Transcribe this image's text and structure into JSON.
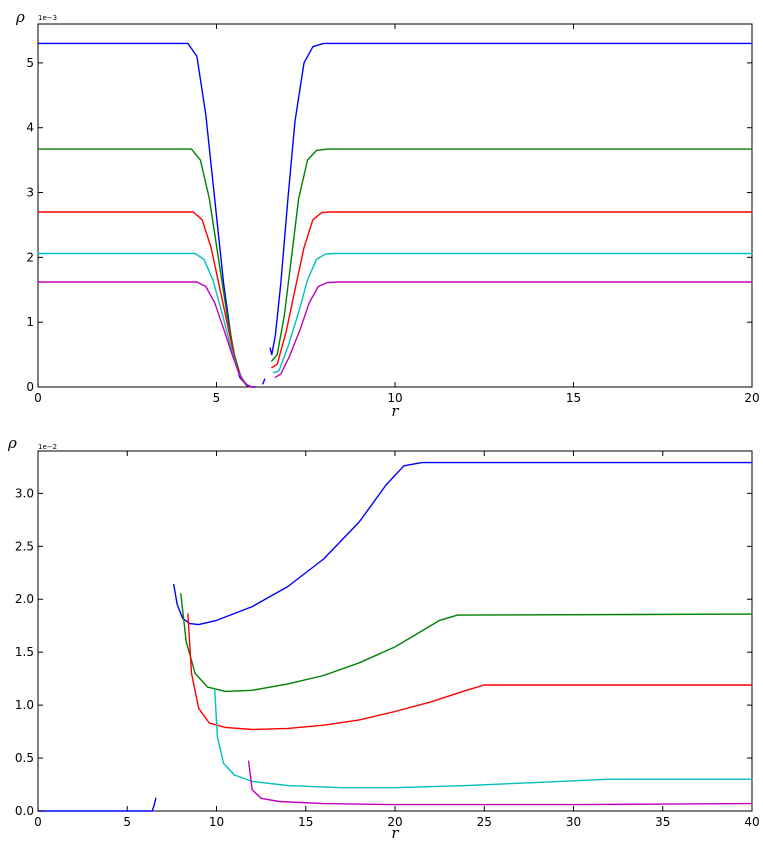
{
  "chart_data": [
    {
      "type": "line",
      "xlabel": "r",
      "ylabel": "ρ",
      "y_offset_label": "1e−3",
      "xlim": [
        0,
        20
      ],
      "ylim": [
        0,
        5.6
      ],
      "xticks": [
        0,
        5,
        10,
        15,
        20
      ],
      "yticks": [
        0,
        1,
        2,
        3,
        4,
        5
      ],
      "grid": false,
      "series": [
        {
          "color": "#0000ff",
          "points": [
            [
              0,
              5.3
            ],
            [
              4.2,
              5.3
            ],
            [
              4.45,
              5.1
            ],
            [
              4.7,
              4.2
            ],
            [
              4.95,
              2.9
            ],
            [
              5.2,
              1.6
            ],
            [
              5.45,
              0.6
            ],
            [
              5.65,
              0.15
            ],
            [
              5.85,
              0.02
            ],
            [
              6.0,
              0.0
            ],
            [
              6.1,
              0.0
            ]
          ],
          "points2": [
            [
              6.3,
              0.05
            ],
            [
              6.35,
              0.12
            ]
          ],
          "points3": [
            [
              6.5,
              0.6
            ],
            [
              6.55,
              0.5
            ],
            [
              6.65,
              0.8
            ],
            [
              6.8,
              1.6
            ],
            [
              7.0,
              2.9
            ],
            [
              7.2,
              4.1
            ],
            [
              7.45,
              5.0
            ],
            [
              7.7,
              5.25
            ],
            [
              8.0,
              5.3
            ],
            [
              20,
              5.3
            ]
          ]
        },
        {
          "color": "#008000",
          "points": [
            [
              0,
              3.67
            ],
            [
              4.3,
              3.67
            ],
            [
              4.55,
              3.5
            ],
            [
              4.8,
              2.9
            ],
            [
              5.05,
              2.0
            ],
            [
              5.3,
              1.1
            ],
            [
              5.5,
              0.5
            ],
            [
              5.7,
              0.12
            ],
            [
              5.9,
              0.01
            ],
            [
              6.05,
              0.0
            ]
          ],
          "points3": [
            [
              6.55,
              0.4
            ],
            [
              6.7,
              0.5
            ],
            [
              6.9,
              1.1
            ],
            [
              7.1,
              2.0
            ],
            [
              7.3,
              2.9
            ],
            [
              7.55,
              3.5
            ],
            [
              7.8,
              3.65
            ],
            [
              8.1,
              3.67
            ],
            [
              20,
              3.67
            ]
          ]
        },
        {
          "color": "#ff0000",
          "points": [
            [
              0,
              2.7
            ],
            [
              4.35,
              2.7
            ],
            [
              4.6,
              2.58
            ],
            [
              4.85,
              2.15
            ],
            [
              5.1,
              1.5
            ],
            [
              5.35,
              0.85
            ],
            [
              5.55,
              0.35
            ],
            [
              5.75,
              0.08
            ],
            [
              5.95,
              0.0
            ],
            [
              6.05,
              0.0
            ]
          ],
          "points3": [
            [
              6.55,
              0.3
            ],
            [
              6.7,
              0.35
            ],
            [
              6.95,
              0.85
            ],
            [
              7.2,
              1.5
            ],
            [
              7.45,
              2.15
            ],
            [
              7.7,
              2.58
            ],
            [
              7.95,
              2.69
            ],
            [
              8.2,
              2.7
            ],
            [
              20,
              2.7
            ]
          ]
        },
        {
          "color": "#00bfbf",
          "points": [
            [
              0,
              2.06
            ],
            [
              4.4,
              2.06
            ],
            [
              4.65,
              1.97
            ],
            [
              4.9,
              1.65
            ],
            [
              5.15,
              1.15
            ],
            [
              5.4,
              0.62
            ],
            [
              5.6,
              0.25
            ],
            [
              5.8,
              0.05
            ],
            [
              6.0,
              0.0
            ],
            [
              6.05,
              0.0
            ]
          ],
          "points3": [
            [
              6.6,
              0.22
            ],
            [
              6.75,
              0.25
            ],
            [
              7.0,
              0.62
            ],
            [
              7.3,
              1.15
            ],
            [
              7.55,
              1.65
            ],
            [
              7.8,
              1.97
            ],
            [
              8.05,
              2.05
            ],
            [
              8.3,
              2.06
            ],
            [
              20,
              2.06
            ]
          ]
        },
        {
          "color": "#bf00bf",
          "points": [
            [
              0,
              1.62
            ],
            [
              4.45,
              1.62
            ],
            [
              4.7,
              1.55
            ],
            [
              4.95,
              1.3
            ],
            [
              5.2,
              0.9
            ],
            [
              5.45,
              0.48
            ],
            [
              5.65,
              0.18
            ],
            [
              5.85,
              0.03
            ],
            [
              6.0,
              0.0
            ],
            [
              6.05,
              0.0
            ]
          ],
          "points3": [
            [
              6.65,
              0.15
            ],
            [
              6.8,
              0.2
            ],
            [
              7.05,
              0.48
            ],
            [
              7.35,
              0.9
            ],
            [
              7.6,
              1.3
            ],
            [
              7.85,
              1.55
            ],
            [
              8.1,
              1.61
            ],
            [
              8.4,
              1.62
            ],
            [
              20,
              1.62
            ]
          ]
        }
      ]
    },
    {
      "type": "line",
      "xlabel": "r",
      "ylabel": "ρ",
      "y_offset_label": "1e−2",
      "xlim": [
        0,
        40
      ],
      "ylim": [
        0,
        3.4
      ],
      "xticks": [
        0,
        5,
        10,
        15,
        20,
        25,
        30,
        35,
        40
      ],
      "yticks": [
        0.0,
        0.5,
        1.0,
        1.5,
        2.0,
        2.5,
        3.0
      ],
      "ytick_labels": [
        "0.0",
        "0.5",
        "1.0",
        "1.5",
        "2.0",
        "2.5",
        "3.0"
      ],
      "grid": false,
      "series": [
        {
          "color": "#0000ff",
          "points": [
            [
              0,
              0.0
            ],
            [
              6.4,
              0.0
            ],
            [
              6.5,
              0.05
            ],
            [
              6.6,
              0.12
            ]
          ],
          "points3": [
            [
              7.6,
              2.14
            ],
            [
              7.8,
              1.95
            ],
            [
              8.1,
              1.82
            ],
            [
              8.5,
              1.77
            ],
            [
              9.0,
              1.76
            ],
            [
              10,
              1.8
            ],
            [
              12,
              1.93
            ],
            [
              14,
              2.12
            ],
            [
              16,
              2.38
            ],
            [
              18,
              2.73
            ],
            [
              19.5,
              3.08
            ],
            [
              20.5,
              3.26
            ],
            [
              21.5,
              3.29
            ],
            [
              40,
              3.29
            ]
          ]
        },
        {
          "color": "#008000",
          "points3": [
            [
              8.0,
              2.05
            ],
            [
              8.3,
              1.6
            ],
            [
              8.8,
              1.3
            ],
            [
              9.5,
              1.17
            ],
            [
              10.5,
              1.13
            ],
            [
              12,
              1.14
            ],
            [
              14,
              1.2
            ],
            [
              16,
              1.28
            ],
            [
              18,
              1.4
            ],
            [
              20,
              1.55
            ],
            [
              21.5,
              1.7
            ],
            [
              22.5,
              1.8
            ],
            [
              23.5,
              1.85
            ],
            [
              40,
              1.86
            ]
          ]
        },
        {
          "color": "#ff0000",
          "points3": [
            [
              8.4,
              1.86
            ],
            [
              8.6,
              1.3
            ],
            [
              9.0,
              0.97
            ],
            [
              9.6,
              0.83
            ],
            [
              10.5,
              0.79
            ],
            [
              12,
              0.77
            ],
            [
              14,
              0.78
            ],
            [
              16,
              0.81
            ],
            [
              18,
              0.86
            ],
            [
              20,
              0.94
            ],
            [
              22,
              1.03
            ],
            [
              24,
              1.14
            ],
            [
              25,
              1.19
            ],
            [
              40,
              1.19
            ]
          ]
        },
        {
          "color": "#00bfbf",
          "points3": [
            [
              9.9,
              1.15
            ],
            [
              10.05,
              0.7
            ],
            [
              10.4,
              0.45
            ],
            [
              11,
              0.34
            ],
            [
              12,
              0.28
            ],
            [
              14,
              0.24
            ],
            [
              17,
              0.22
            ],
            [
              20,
              0.22
            ],
            [
              24,
              0.24
            ],
            [
              28,
              0.27
            ],
            [
              32,
              0.3
            ],
            [
              40,
              0.3
            ]
          ]
        },
        {
          "color": "#bf00bf",
          "points3": [
            [
              11.8,
              0.47
            ],
            [
              12.0,
              0.2
            ],
            [
              12.5,
              0.12
            ],
            [
              13.5,
              0.09
            ],
            [
              16,
              0.07
            ],
            [
              20,
              0.06
            ],
            [
              25,
              0.06
            ],
            [
              30,
              0.06
            ],
            [
              35,
              0.065
            ],
            [
              40,
              0.07
            ]
          ]
        }
      ]
    }
  ],
  "panels": [
    {
      "ylabel": "ρ",
      "offset": "1e−3",
      "xlabel": "r"
    },
    {
      "ylabel": "ρ",
      "offset": "1e−2",
      "xlabel": "r"
    }
  ]
}
